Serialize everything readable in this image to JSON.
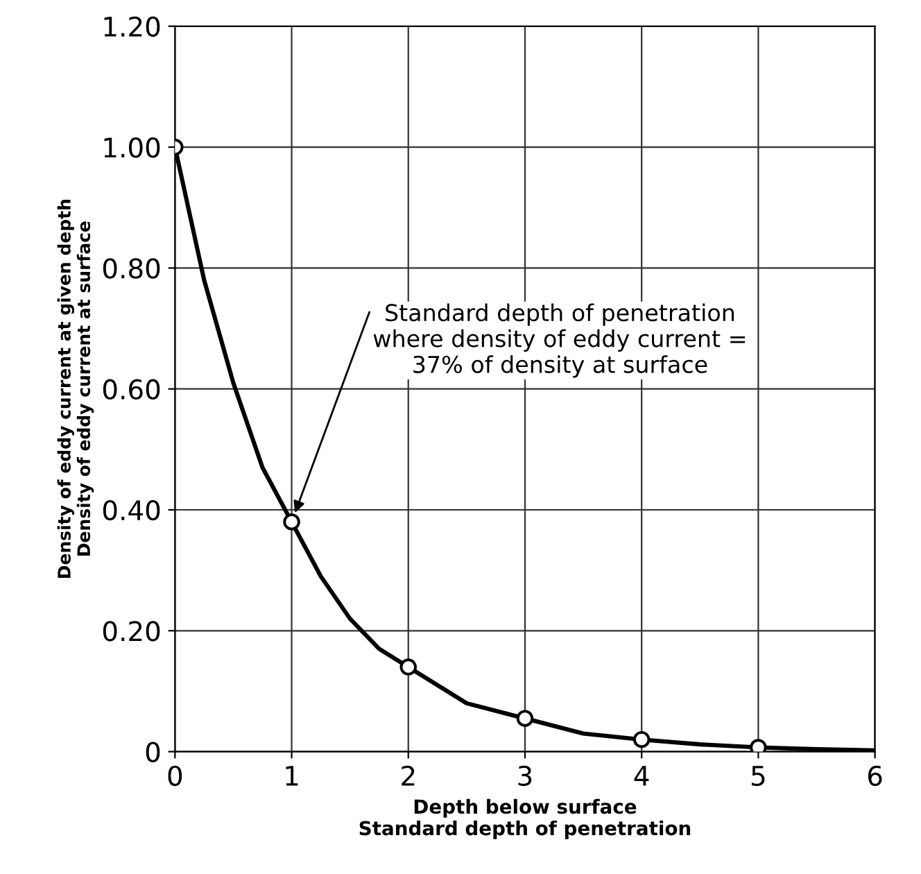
{
  "chart_data": {
    "type": "line",
    "xlabel": "Depth below surface\nStandard depth of penetration",
    "ylabel": "Density of eddy current at given depth\nDensity of eddy current at surface",
    "xlim": [
      0,
      6
    ],
    "ylim": [
      0,
      1.2
    ],
    "xticks": [
      0,
      1,
      2,
      3,
      4,
      5,
      6
    ],
    "yticks": [
      {
        "value": 0,
        "label": "0"
      },
      {
        "value": 0.2,
        "label": "0.20"
      },
      {
        "value": 0.4,
        "label": "0.40"
      },
      {
        "value": 0.6,
        "label": "0.60"
      },
      {
        "value": 0.8,
        "label": "0.80"
      },
      {
        "value": 1.0,
        "label": "1.00"
      },
      {
        "value": 1.2,
        "label": "1.20"
      }
    ],
    "grid": true,
    "legend": false,
    "series": [
      {
        "color": "#000000",
        "marker": "none",
        "x": [
          0,
          0.25,
          0.5,
          0.75,
          1,
          1.25,
          1.5,
          1.75,
          2,
          2.5,
          3,
          3.5,
          4,
          4.5,
          5,
          5.5,
          6
        ],
        "values": [
          1.0,
          0.78,
          0.61,
          0.47,
          0.38,
          0.29,
          0.22,
          0.17,
          0.14,
          0.08,
          0.055,
          0.03,
          0.02,
          0.012,
          0.007,
          0.004,
          0.002
        ]
      },
      {
        "type": "scatter",
        "color": "#000000",
        "marker": "circle",
        "x": [
          0,
          1,
          2,
          3,
          4,
          5
        ],
        "values": [
          1.0,
          0.38,
          0.14,
          0.055,
          0.02,
          0.007
        ]
      }
    ],
    "annotations": [
      {
        "text": "Standard depth of penetration\nwhere density of eddy current =\n37% of density at surface",
        "x": 1,
        "y": 0.38
      }
    ]
  }
}
